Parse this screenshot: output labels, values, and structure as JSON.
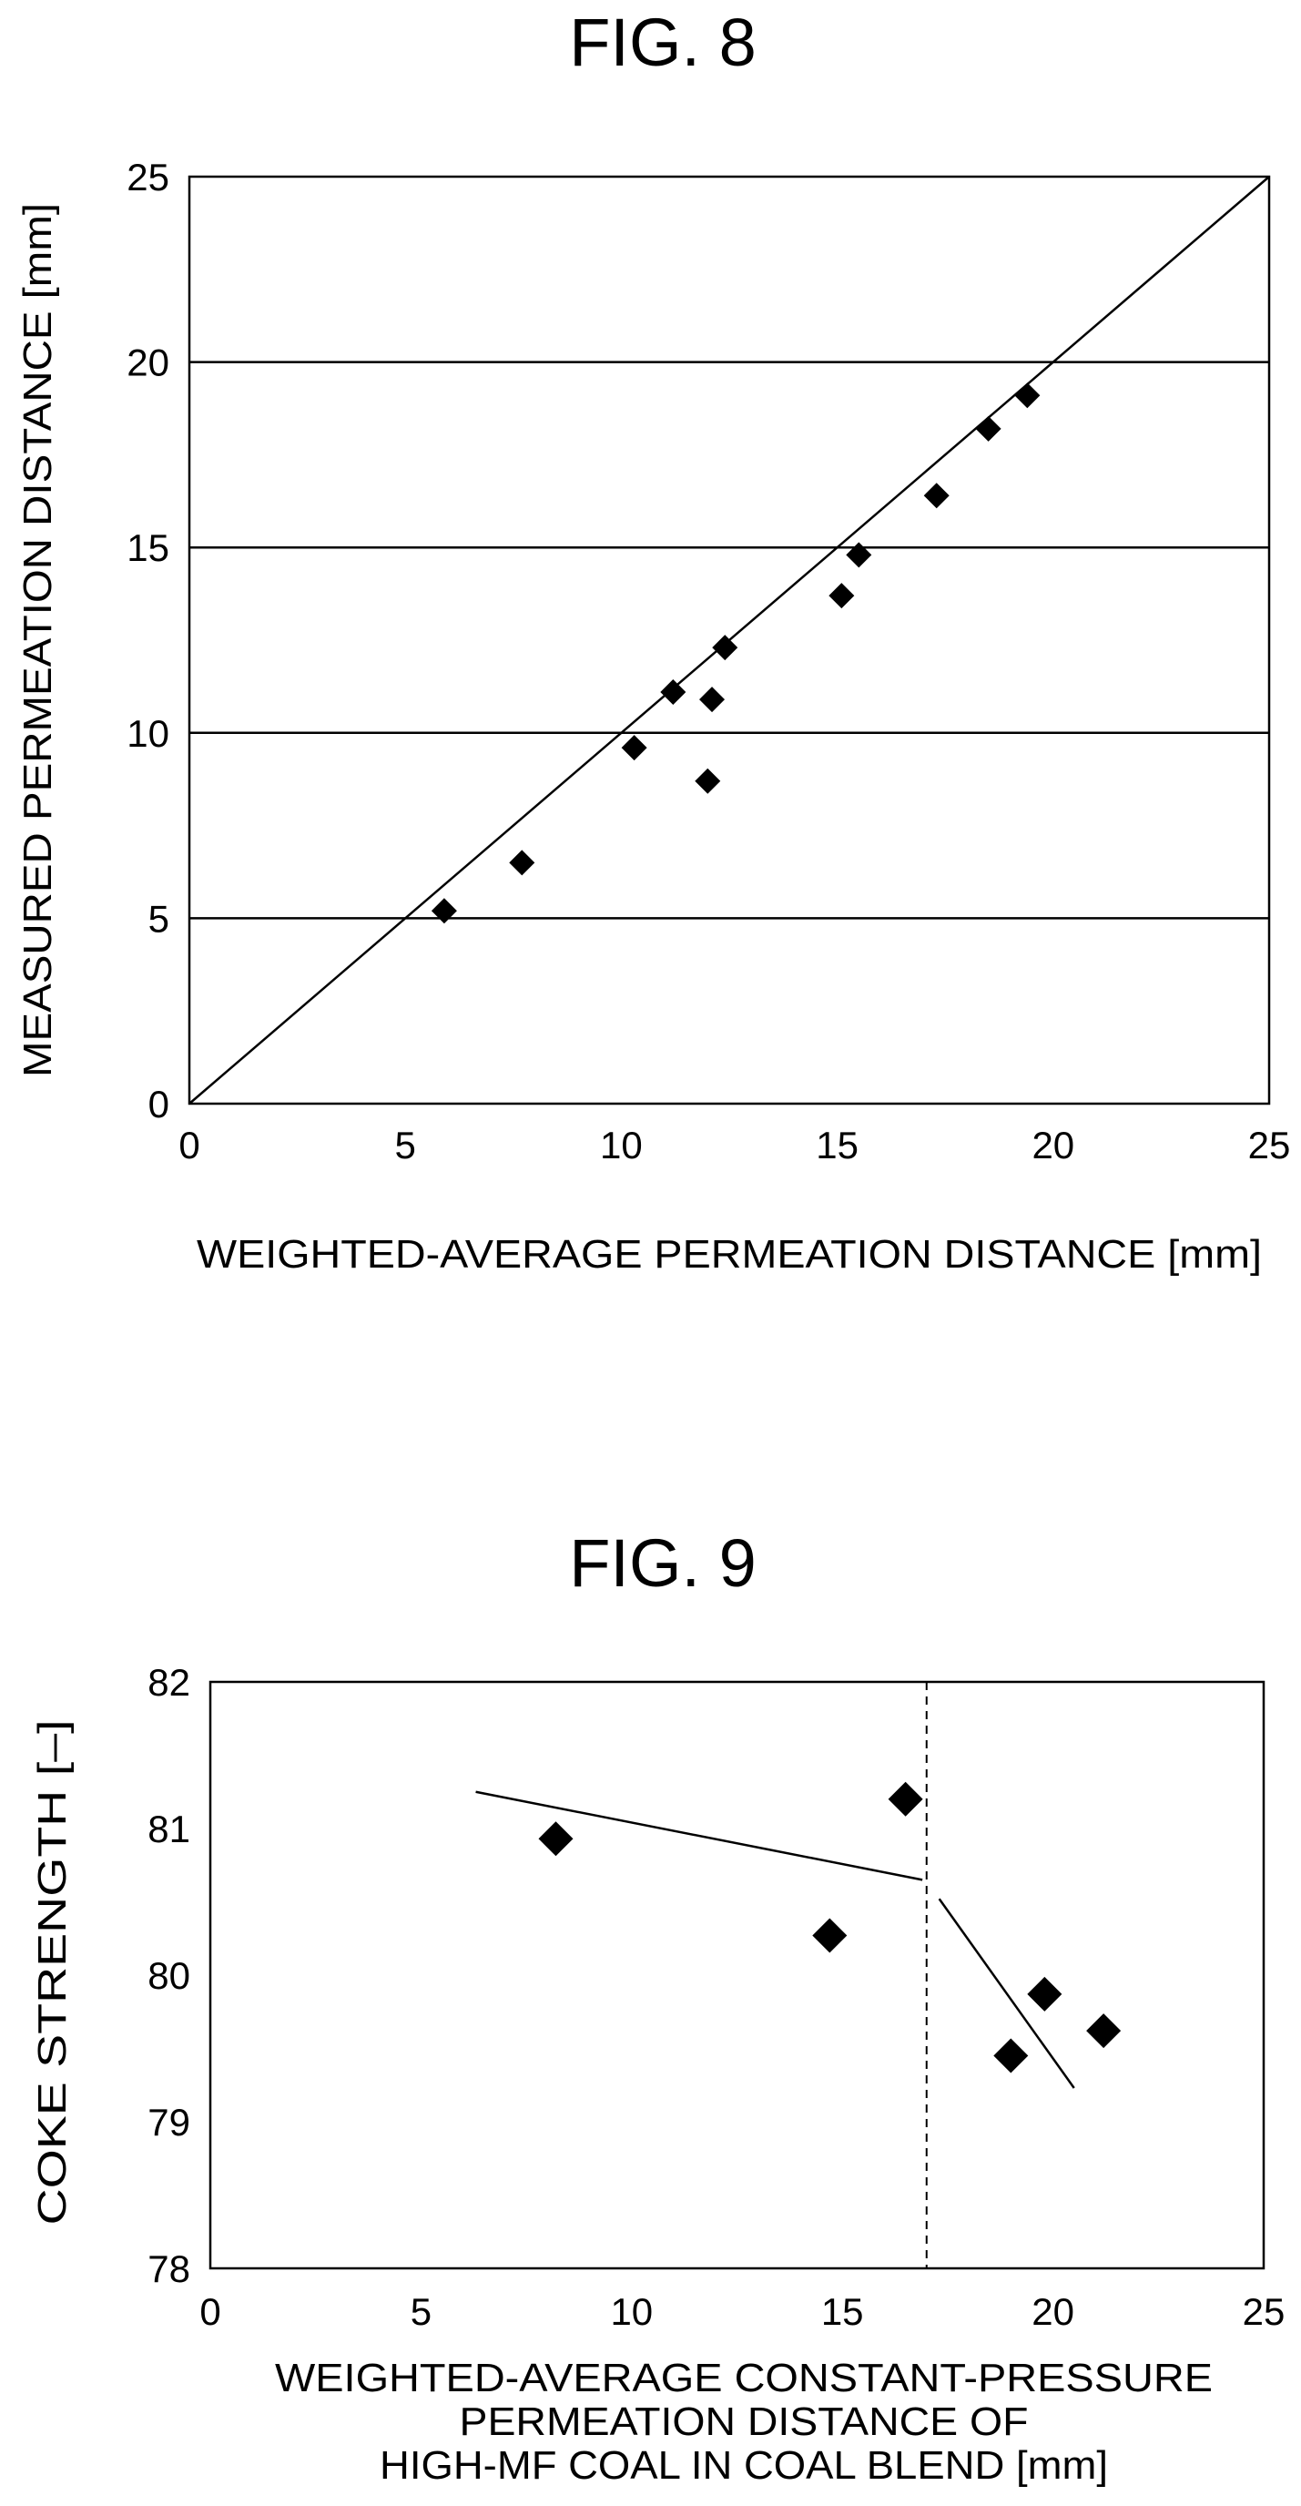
{
  "chart_data": [
    {
      "type": "scatter",
      "title": "FIG. 8",
      "xlabel": "WEIGHTED-AVERAGE PERMEATION DISTANCE [mm]",
      "ylabel": "MEASURED PERMEATION DISTANCE [mm]",
      "xlim": [
        0,
        25
      ],
      "ylim": [
        0,
        25
      ],
      "xticks": [
        "0",
        "5",
        "10",
        "15",
        "20",
        "25"
      ],
      "yticks": [
        "0",
        "5",
        "10",
        "15",
        "20",
        "25"
      ],
      "grid": "horizontal",
      "marker": "diamond",
      "points": [
        {
          "x": 5.9,
          "y": 5.2
        },
        {
          "x": 7.7,
          "y": 6.5
        },
        {
          "x": 10.3,
          "y": 9.6
        },
        {
          "x": 11.2,
          "y": 11.1
        },
        {
          "x": 12.1,
          "y": 10.9
        },
        {
          "x": 12.0,
          "y": 8.7
        },
        {
          "x": 12.4,
          "y": 12.3
        },
        {
          "x": 15.1,
          "y": 13.7
        },
        {
          "x": 15.5,
          "y": 14.8
        },
        {
          "x": 17.3,
          "y": 16.4
        },
        {
          "x": 18.5,
          "y": 18.2
        },
        {
          "x": 19.4,
          "y": 19.1
        }
      ],
      "reference_line": {
        "x": [
          0,
          25
        ],
        "y": [
          0,
          25
        ]
      }
    },
    {
      "type": "scatter",
      "title": "FIG. 9",
      "xlabel_lines": [
        "WEIGHTED-AVERAGE CONSTANT-PRESSURE",
        "PERMEATION DISTANCE OF",
        "HIGH-MF COAL IN COAL BLEND [mm]"
      ],
      "ylabel": "COKE STRENGTH [–]",
      "xlim": [
        0,
        25
      ],
      "ylim": [
        78,
        82
      ],
      "xticks": [
        "0",
        "5",
        "10",
        "15",
        "20",
        "25"
      ],
      "yticks": [
        "78",
        "79",
        "80",
        "81",
        "82"
      ],
      "grid": "none",
      "marker": "diamond",
      "points": [
        {
          "x": 8.2,
          "y": 80.93
        },
        {
          "x": 14.7,
          "y": 80.27
        },
        {
          "x": 16.5,
          "y": 81.2
        },
        {
          "x": 19.0,
          "y": 79.45
        },
        {
          "x": 19.8,
          "y": 79.87
        },
        {
          "x": 21.2,
          "y": 79.62
        }
      ],
      "trend_lines": [
        {
          "x": [
            6.3,
            16.9
          ],
          "y": [
            81.25,
            80.65
          ]
        },
        {
          "x": [
            17.3,
            20.5
          ],
          "y": [
            80.52,
            79.23
          ]
        }
      ],
      "vertical_reference": {
        "x": 17.0,
        "style": "dashed"
      }
    }
  ]
}
